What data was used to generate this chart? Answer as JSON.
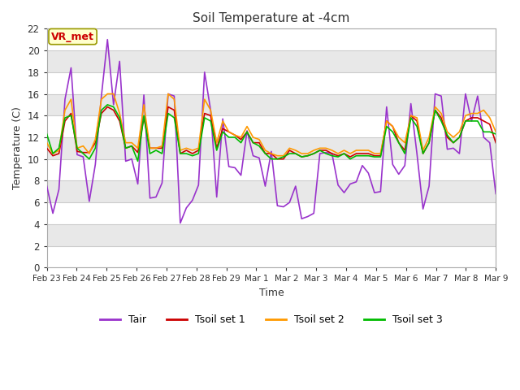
{
  "title": "Soil Temperature at -4cm",
  "xlabel": "Time",
  "ylabel": "Temperature (C)",
  "ylim": [
    0,
    22
  ],
  "yticks": [
    0,
    2,
    4,
    6,
    8,
    10,
    12,
    14,
    16,
    18,
    20,
    22
  ],
  "xlabels": [
    "Feb 23",
    "Feb 24",
    "Feb 25",
    "Feb 26",
    "Feb 27",
    "Feb 28",
    "Feb 29",
    "Mar 1",
    "Mar 2",
    "Mar 3",
    "Mar 4",
    "Mar 5",
    "Mar 6",
    "Mar 7",
    "Mar 8",
    "Mar 9"
  ],
  "annotation_text": "VR_met",
  "annotation_bg": "#ffffcc",
  "annotation_border": "#996600",
  "annotation_text_color": "#cc0000",
  "colors": {
    "Tair": "#9933cc",
    "Tsoil1": "#cc0000",
    "Tsoil2": "#ff9900",
    "Tsoil3": "#00bb00"
  },
  "bg_color": "#e8e8e8",
  "band_light": "#f5f5f5",
  "band_dark": "#e0e0e0",
  "Tair": [
    7.5,
    5.0,
    7.2,
    15.5,
    18.4,
    10.4,
    10.2,
    6.1,
    9.5,
    15.8,
    21.0,
    15.0,
    19.0,
    9.8,
    10.0,
    7.7,
    15.9,
    6.4,
    6.5,
    7.8,
    16.0,
    15.8,
    4.1,
    5.5,
    6.2,
    7.6,
    18.0,
    14.5,
    6.5,
    13.7,
    9.3,
    9.2,
    8.5,
    12.6,
    10.3,
    10.1,
    7.5,
    10.7,
    5.7,
    5.6,
    6.0,
    7.5,
    4.5,
    4.7,
    5.0,
    10.5,
    10.6,
    10.5,
    7.6,
    6.9,
    7.7,
    7.9,
    9.4,
    8.7,
    6.9,
    7.0,
    14.8,
    9.5,
    8.6,
    9.4,
    15.1,
    10.5,
    5.4,
    7.5,
    16.0,
    15.8,
    10.9,
    11.0,
    10.5,
    16.0,
    13.5,
    15.8,
    12.0,
    11.5,
    6.8
  ],
  "Tsoil1": [
    11.0,
    10.3,
    10.5,
    13.5,
    14.2,
    10.7,
    10.6,
    10.6,
    11.5,
    14.2,
    14.8,
    14.5,
    13.5,
    11.0,
    11.2,
    10.6,
    13.8,
    11.0,
    11.0,
    11.0,
    14.8,
    14.5,
    10.5,
    10.8,
    10.5,
    10.8,
    14.2,
    14.0,
    11.0,
    12.8,
    12.5,
    12.2,
    11.8,
    12.5,
    11.5,
    11.5,
    10.5,
    10.5,
    10.0,
    10.0,
    10.8,
    10.5,
    10.2,
    10.3,
    10.5,
    10.8,
    10.8,
    10.5,
    10.3,
    10.5,
    10.2,
    10.5,
    10.5,
    10.5,
    10.3,
    10.3,
    13.5,
    13.0,
    11.5,
    10.8,
    14.0,
    13.5,
    10.5,
    11.5,
    14.5,
    13.8,
    12.0,
    11.5,
    12.0,
    13.5,
    13.8,
    13.8,
    13.5,
    13.2,
    11.5
  ],
  "Tsoil2": [
    11.5,
    10.5,
    10.8,
    14.5,
    15.5,
    11.0,
    11.2,
    10.5,
    11.8,
    15.5,
    16.0,
    16.0,
    14.2,
    11.5,
    11.5,
    11.0,
    15.0,
    11.0,
    11.0,
    11.2,
    16.0,
    15.5,
    10.8,
    11.0,
    10.8,
    11.0,
    15.5,
    14.5,
    11.5,
    13.5,
    12.5,
    12.2,
    12.0,
    13.0,
    12.0,
    11.8,
    10.8,
    10.5,
    10.3,
    10.3,
    11.0,
    10.8,
    10.5,
    10.5,
    10.8,
    11.0,
    11.0,
    10.8,
    10.5,
    10.8,
    10.5,
    10.8,
    10.8,
    10.8,
    10.5,
    10.5,
    13.5,
    13.0,
    12.0,
    11.5,
    14.0,
    13.8,
    10.8,
    12.0,
    14.8,
    14.2,
    12.5,
    12.0,
    12.5,
    14.0,
    14.2,
    14.2,
    14.5,
    13.8,
    12.5
  ],
  "Tsoil3": [
    12.3,
    10.5,
    11.0,
    13.8,
    14.0,
    11.0,
    10.5,
    10.0,
    11.0,
    14.5,
    15.0,
    14.8,
    13.8,
    11.0,
    11.2,
    9.8,
    14.0,
    10.5,
    10.8,
    10.5,
    14.2,
    13.8,
    10.5,
    10.5,
    10.3,
    10.5,
    13.8,
    13.5,
    10.8,
    12.5,
    12.0,
    12.0,
    11.5,
    12.5,
    11.5,
    11.2,
    10.5,
    10.0,
    10.0,
    10.2,
    10.5,
    10.5,
    10.2,
    10.3,
    10.5,
    10.8,
    10.5,
    10.3,
    10.2,
    10.5,
    10.0,
    10.3,
    10.3,
    10.3,
    10.2,
    10.2,
    13.0,
    12.5,
    11.5,
    10.5,
    13.8,
    13.0,
    10.5,
    11.5,
    14.5,
    13.5,
    12.2,
    11.5,
    12.0,
    13.5,
    13.5,
    13.5,
    12.5,
    12.5,
    12.3
  ]
}
